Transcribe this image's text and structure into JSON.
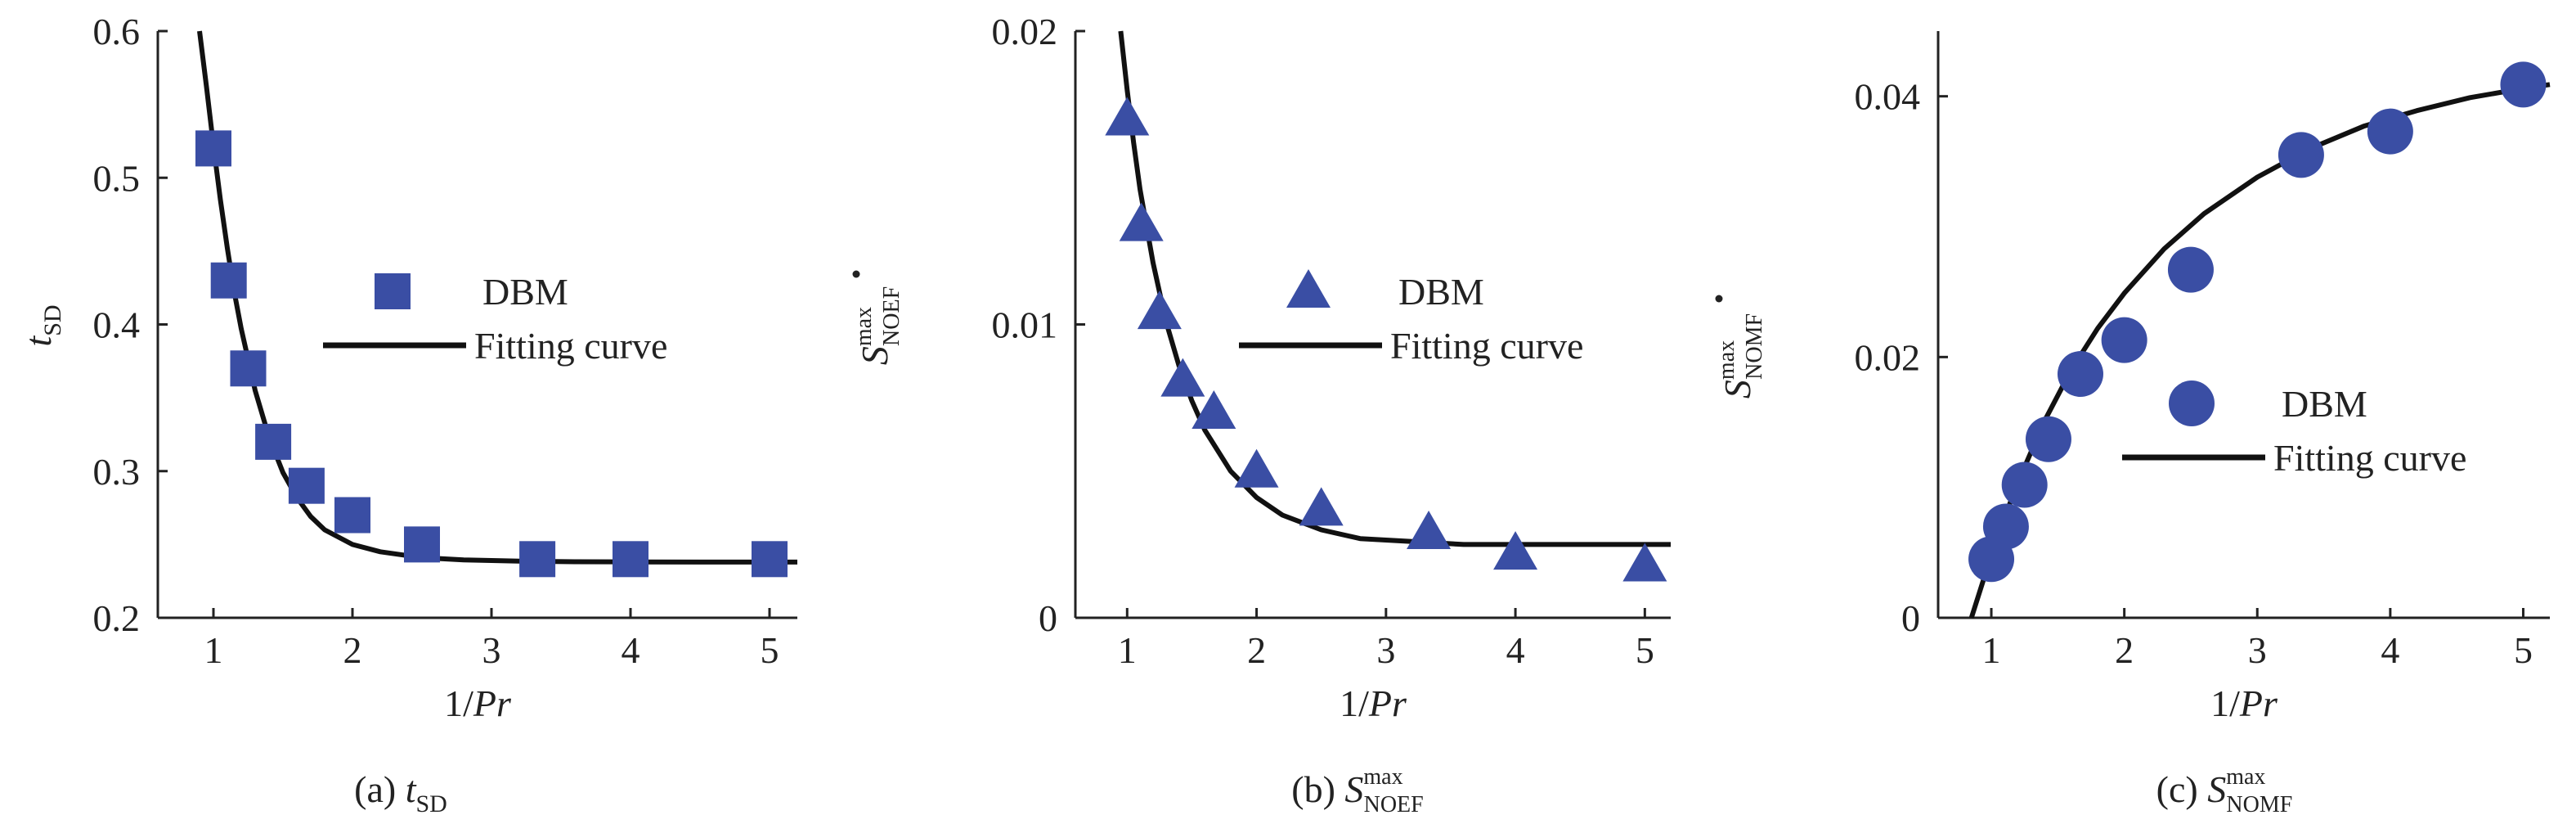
{
  "colors": {
    "marker": "#3a4ea4",
    "curve": "#111111",
    "axis": "#222222"
  },
  "legend": {
    "marker_label": "DBM",
    "curve_label": "Fitting curve"
  },
  "chart_data": [
    {
      "type": "scatter",
      "panel_caption": {
        "prefix": "(a) ",
        "symbol": "t",
        "subscript": "SD"
      },
      "xlabel": {
        "num": "1/",
        "var": "Pr"
      },
      "ylabel": {
        "symbol": "t",
        "subscript": "SD",
        "dot": false
      },
      "xlim": [
        0.6,
        5.2
      ],
      "ylim": [
        0.2,
        0.6
      ],
      "xticks": [
        1,
        2,
        3,
        4,
        5
      ],
      "yticks": [
        0.2,
        0.3,
        0.4,
        0.5,
        0.6
      ],
      "ytick_labels": [
        "0.2",
        "0.3",
        "0.4",
        "0.5",
        "0.6"
      ],
      "marker": "square",
      "legend_position": "center",
      "series": [
        {
          "name": "DBM",
          "kind": "markers",
          "x": [
            1,
            1.11,
            1.25,
            1.43,
            1.67,
            2,
            2.5,
            3.33,
            4,
            5
          ],
          "y": [
            0.52,
            0.43,
            0.37,
            0.32,
            0.29,
            0.27,
            0.25,
            0.24,
            0.24,
            0.24
          ]
        },
        {
          "name": "Fitting curve",
          "kind": "curve",
          "x": [
            0.9,
            0.95,
            1,
            1.05,
            1.1,
            1.15,
            1.2,
            1.3,
            1.4,
            1.5,
            1.6,
            1.7,
            1.8,
            2,
            2.2,
            2.5,
            2.8,
            3.2,
            3.6,
            4,
            4.5,
            5,
            5.2
          ],
          "y": [
            0.6,
            0.562,
            0.522,
            0.485,
            0.452,
            0.422,
            0.397,
            0.355,
            0.323,
            0.299,
            0.282,
            0.269,
            0.26,
            0.25,
            0.245,
            0.241,
            0.2395,
            0.2386,
            0.2382,
            0.2381,
            0.238,
            0.238,
            0.238
          ]
        }
      ]
    },
    {
      "type": "scatter",
      "panel_caption": {
        "prefix": "(b) ",
        "symbol": "S",
        "subscript": "NOEF",
        "superscript": "max"
      },
      "xlabel": {
        "num": "1/",
        "var": "Pr"
      },
      "ylabel": {
        "symbol": "S",
        "subscript": "NOEF",
        "superscript": "max",
        "dot": true
      },
      "xlim": [
        0.6,
        5.2
      ],
      "ylim": [
        0,
        0.02
      ],
      "xticks": [
        1,
        2,
        3,
        4,
        5
      ],
      "yticks": [
        0,
        0.01,
        0.02
      ],
      "ytick_labels": [
        "0",
        "0.01",
        "0.02"
      ],
      "marker": "triangle",
      "legend_position": "center",
      "series": [
        {
          "name": "DBM",
          "kind": "markers",
          "x": [
            1,
            1.11,
            1.25,
            1.43,
            1.67,
            2,
            2.5,
            3.33,
            4,
            5
          ],
          "y": [
            0.017,
            0.0134,
            0.0104,
            0.0081,
            0.007,
            0.005,
            0.0037,
            0.0029,
            0.0022,
            0.0018
          ]
        },
        {
          "name": "Fitting curve",
          "kind": "curve",
          "x": [
            0.95,
            1,
            1.05,
            1.1,
            1.2,
            1.3,
            1.4,
            1.5,
            1.6,
            1.8,
            2,
            2.2,
            2.5,
            2.8,
            3.2,
            3.6,
            4,
            4.5,
            5,
            5.2
          ],
          "y": [
            0.02,
            0.018,
            0.0162,
            0.0146,
            0.0121,
            0.0101,
            0.0086,
            0.0074,
            0.0064,
            0.005,
            0.0041,
            0.0035,
            0.003,
            0.0027,
            0.0026,
            0.0025,
            0.0025,
            0.0025,
            0.0025,
            0.0025
          ]
        }
      ]
    },
    {
      "type": "scatter",
      "panel_caption": {
        "prefix": "(c) ",
        "symbol": "S",
        "subscript": "NOMF",
        "superscript": "max"
      },
      "xlabel": {
        "num": "1/",
        "var": "Pr"
      },
      "ylabel": {
        "symbol": "S",
        "subscript": "NOMF",
        "superscript": "max",
        "dot": true
      },
      "xlim": [
        0.6,
        5.2
      ],
      "ylim": [
        0,
        0.045
      ],
      "xticks": [
        1,
        2,
        3,
        4,
        5
      ],
      "yticks": [
        0,
        0.02,
        0.04
      ],
      "ytick_labels": [
        "0",
        "0.02",
        "0.04"
      ],
      "marker": "circle",
      "legend_position": "center-right",
      "series": [
        {
          "name": "DBM",
          "kind": "markers",
          "x": [
            1,
            1.11,
            1.25,
            1.43,
            1.67,
            2,
            2.5,
            3.33,
            4,
            5
          ],
          "y": [
            0.0045,
            0.007,
            0.0102,
            0.0137,
            0.0187,
            0.0213,
            0.0267,
            0.0355,
            0.0373,
            0.0409
          ]
        },
        {
          "name": "Fitting curve",
          "kind": "curve",
          "x": [
            0.85,
            0.9,
            1,
            1.1,
            1.2,
            1.4,
            1.6,
            1.8,
            2,
            2.3,
            2.6,
            3,
            3.4,
            3.8,
            4.2,
            4.6,
            5,
            5.2
          ],
          "y": [
            0,
            0.0016,
            0.0048,
            0.0077,
            0.0104,
            0.0151,
            0.019,
            0.0222,
            0.0249,
            0.0283,
            0.031,
            0.0338,
            0.036,
            0.0377,
            0.0389,
            0.0399,
            0.0406,
            0.0409
          ]
        }
      ]
    }
  ]
}
